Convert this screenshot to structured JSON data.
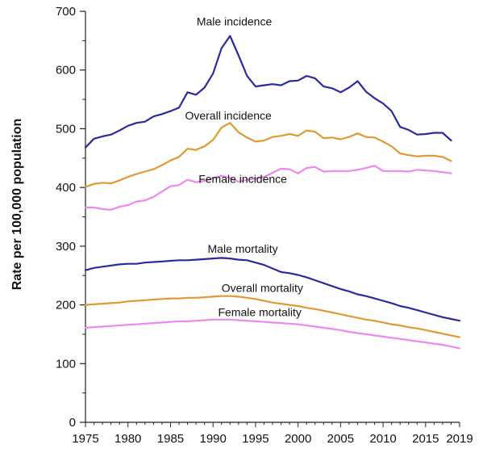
{
  "chart_data": {
    "type": "line",
    "title": "",
    "xlabel": "",
    "ylabel": "Rate per 100,000 population",
    "xlim": [
      1975,
      2019
    ],
    "ylim": [
      0,
      700
    ],
    "x_ticks": [
      1975,
      1980,
      1985,
      1990,
      1995,
      2000,
      2005,
      2010,
      2015,
      2019
    ],
    "y_ticks": [
      0,
      100,
      200,
      300,
      400,
      500,
      600,
      700
    ],
    "grid": false,
    "legend": "none",
    "series": [
      {
        "name": "Male incidence",
        "color": "#2b2b9e",
        "x": [
          1975,
          1976,
          1977,
          1978,
          1979,
          1980,
          1981,
          1982,
          1983,
          1984,
          1985,
          1986,
          1987,
          1988,
          1989,
          1990,
          1991,
          1992,
          1993,
          1994,
          1995,
          1996,
          1997,
          1998,
          1999,
          2000,
          2001,
          2002,
          2003,
          2004,
          2005,
          2006,
          2007,
          2008,
          2009,
          2010,
          2011,
          2012,
          2013,
          2014,
          2015,
          2016,
          2017,
          2018
        ],
        "values": [
          468,
          483,
          487,
          490,
          497,
          505,
          510,
          512,
          521,
          525,
          530,
          536,
          562,
          558,
          570,
          594,
          637,
          658,
          625,
          590,
          572,
          574,
          576,
          574,
          581,
          582,
          590,
          586,
          572,
          569,
          562,
          570,
          581,
          563,
          552,
          543,
          530,
          503,
          498,
          490,
          491,
          493,
          493,
          480
        ]
      },
      {
        "name": "Overall incidence",
        "color": "#e09a33",
        "x": [
          1975,
          1976,
          1977,
          1978,
          1979,
          1980,
          1981,
          1982,
          1983,
          1984,
          1985,
          1986,
          1987,
          1988,
          1989,
          1990,
          1991,
          1992,
          1993,
          1994,
          1995,
          1996,
          1997,
          1998,
          1999,
          2000,
          2001,
          2002,
          2003,
          2004,
          2005,
          2006,
          2007,
          2008,
          2009,
          2010,
          2011,
          2012,
          2013,
          2014,
          2015,
          2016,
          2017,
          2018
        ],
        "values": [
          401,
          406,
          408,
          407,
          412,
          418,
          423,
          427,
          431,
          438,
          446,
          452,
          466,
          464,
          470,
          481,
          502,
          510,
          494,
          485,
          478,
          480,
          486,
          488,
          491,
          488,
          497,
          495,
          484,
          485,
          482,
          486,
          492,
          486,
          485,
          478,
          470,
          458,
          455,
          453,
          454,
          454,
          452,
          445
        ]
      },
      {
        "name": "Female incidence",
        "color": "#ee88ee",
        "x": [
          1975,
          1976,
          1977,
          1978,
          1979,
          1980,
          1981,
          1982,
          1983,
          1984,
          1985,
          1986,
          1987,
          1988,
          1989,
          1990,
          1991,
          1992,
          1993,
          1994,
          1995,
          1996,
          1997,
          1998,
          1999,
          2000,
          2001,
          2002,
          2003,
          2004,
          2005,
          2006,
          2007,
          2008,
          2009,
          2010,
          2011,
          2012,
          2013,
          2014,
          2015,
          2016,
          2017,
          2018
        ],
        "values": [
          366,
          366,
          363,
          362,
          367,
          370,
          376,
          378,
          384,
          393,
          402,
          404,
          413,
          409,
          411,
          416,
          420,
          416,
          410,
          413,
          415,
          418,
          425,
          432,
          431,
          424,
          433,
          435,
          427,
          428,
          428,
          428,
          430,
          433,
          437,
          428,
          428,
          428,
          427,
          430,
          429,
          428,
          426,
          424
        ]
      },
      {
        "name": "Male mortality",
        "color": "#2b2b9e",
        "x": [
          1975,
          1976,
          1977,
          1978,
          1979,
          1980,
          1981,
          1982,
          1983,
          1984,
          1985,
          1986,
          1987,
          1988,
          1989,
          1990,
          1991,
          1992,
          1993,
          1994,
          1995,
          1996,
          1997,
          1998,
          1999,
          2000,
          2001,
          2002,
          2003,
          2004,
          2005,
          2006,
          2007,
          2008,
          2009,
          2010,
          2011,
          2012,
          2013,
          2014,
          2015,
          2016,
          2017,
          2018,
          2019
        ],
        "values": [
          259,
          263,
          265,
          267,
          269,
          270,
          270,
          272,
          273,
          274,
          275,
          276,
          276,
          277,
          278,
          279,
          280,
          279,
          277,
          276,
          272,
          268,
          262,
          256,
          254,
          251,
          247,
          242,
          237,
          232,
          227,
          223,
          218,
          215,
          211,
          207,
          203,
          198,
          195,
          191,
          187,
          183,
          179,
          176,
          173
        ]
      },
      {
        "name": "Overall mortality",
        "color": "#e09a33",
        "x": [
          1975,
          1976,
          1977,
          1978,
          1979,
          1980,
          1981,
          1982,
          1983,
          1984,
          1985,
          1986,
          1987,
          1988,
          1989,
          1990,
          1991,
          1992,
          1993,
          1994,
          1995,
          1996,
          1997,
          1998,
          1999,
          2000,
          2001,
          2002,
          2003,
          2004,
          2005,
          2006,
          2007,
          2008,
          2009,
          2010,
          2011,
          2012,
          2013,
          2014,
          2015,
          2016,
          2017,
          2018,
          2019
        ],
        "values": [
          200,
          201,
          202,
          203,
          204,
          206,
          207,
          208,
          209,
          210,
          211,
          211,
          212,
          212,
          213,
          214,
          215,
          215,
          214,
          212,
          210,
          207,
          204,
          202,
          200,
          198,
          195,
          193,
          190,
          187,
          184,
          181,
          178,
          175,
          173,
          170,
          167,
          165,
          162,
          160,
          157,
          154,
          151,
          148,
          145
        ]
      },
      {
        "name": "Female mortality",
        "color": "#ee88ee",
        "x": [
          1975,
          1976,
          1977,
          1978,
          1979,
          1980,
          1981,
          1982,
          1983,
          1984,
          1985,
          1986,
          1987,
          1988,
          1989,
          1990,
          1991,
          1992,
          1993,
          1994,
          1995,
          1996,
          1997,
          1998,
          1999,
          2000,
          2001,
          2002,
          2003,
          2004,
          2005,
          2006,
          2007,
          2008,
          2009,
          2010,
          2011,
          2012,
          2013,
          2014,
          2015,
          2016,
          2017,
          2018,
          2019
        ],
        "values": [
          161,
          162,
          163,
          164,
          165,
          166,
          167,
          168,
          169,
          170,
          171,
          172,
          172,
          173,
          174,
          175,
          175,
          175,
          174,
          173,
          172,
          171,
          170,
          169,
          168,
          167,
          165,
          163,
          161,
          159,
          157,
          154,
          152,
          150,
          148,
          146,
          144,
          142,
          140,
          138,
          136,
          134,
          132,
          129,
          126
        ]
      }
    ],
    "annotations": [
      {
        "text": "Male incidence",
        "x": 1992.5,
        "y": 676
      },
      {
        "text": "Overall incidence",
        "x": 1991.8,
        "y": 516
      },
      {
        "text": "Female incidence",
        "x": 1993.5,
        "y": 408
      },
      {
        "text": "Male mortality",
        "x": 1993.5,
        "y": 289
      },
      {
        "text": "Overall mortality",
        "x": 1995.8,
        "y": 222
      },
      {
        "text": "Female mortality",
        "x": 1995.5,
        "y": 181
      }
    ]
  }
}
